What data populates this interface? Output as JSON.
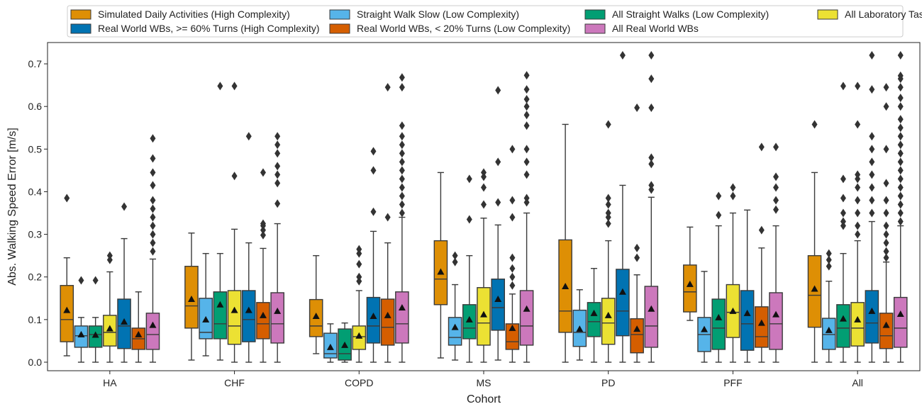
{
  "chart_data": {
    "type": "box",
    "xlabel": "Cohort",
    "ylabel": "Abs. Walking Speed Error [m/s]",
    "ylim": [
      -0.02,
      0.75
    ],
    "yticks": [
      0.0,
      0.1,
      0.2,
      0.3,
      0.4,
      0.5,
      0.6,
      0.7
    ],
    "ytick_labels": [
      "0.0",
      "0.1",
      "0.2",
      "0.3",
      "0.4",
      "0.5",
      "0.6",
      "0.7"
    ],
    "legend_position": "top (above plot), 4 columns",
    "categories": [
      "HA",
      "CHF",
      "COPD",
      "MS",
      "PD",
      "PFF",
      "All"
    ],
    "series": [
      {
        "name": "Simulated Daily Activities (High Complexity)",
        "color": "#DE8F05",
        "boxes": [
          {
            "whislo": 0.015,
            "q1": 0.048,
            "med": 0.1,
            "q3": 0.18,
            "whishi": 0.245,
            "mean": 0.122,
            "fliers": [
              0.385
            ]
          },
          {
            "whislo": 0.005,
            "q1": 0.08,
            "med": 0.132,
            "q3": 0.225,
            "whishi": 0.303,
            "mean": 0.148,
            "fliers": []
          },
          {
            "whislo": 0.02,
            "q1": 0.06,
            "med": 0.085,
            "q3": 0.147,
            "whishi": 0.25,
            "mean": 0.108,
            "fliers": []
          },
          {
            "whislo": 0.01,
            "q1": 0.135,
            "med": 0.195,
            "q3": 0.285,
            "whishi": 0.445,
            "mean": 0.212,
            "fliers": []
          },
          {
            "whislo": 0.0,
            "q1": 0.07,
            "med": 0.12,
            "q3": 0.287,
            "whishi": 0.558,
            "mean": 0.178,
            "fliers": []
          },
          {
            "whislo": 0.098,
            "q1": 0.118,
            "med": 0.165,
            "q3": 0.228,
            "whishi": 0.317,
            "mean": 0.183,
            "fliers": []
          },
          {
            "whislo": 0.0,
            "q1": 0.082,
            "med": 0.157,
            "q3": 0.25,
            "whishi": 0.445,
            "mean": 0.172,
            "fliers": [
              0.558
            ]
          }
        ]
      },
      {
        "name": "Straight Walk Slow (Low Complexity)",
        "color": "#56B4E9",
        "boxes": [
          {
            "whislo": 0.0,
            "q1": 0.035,
            "med": 0.062,
            "q3": 0.085,
            "whishi": 0.105,
            "mean": 0.065,
            "fliers": [
              0.192
            ]
          },
          {
            "whislo": 0.015,
            "q1": 0.055,
            "med": 0.07,
            "q3": 0.15,
            "whishi": 0.255,
            "mean": 0.1,
            "fliers": []
          },
          {
            "whislo": 0.0,
            "q1": 0.01,
            "med": 0.02,
            "q3": 0.068,
            "whishi": 0.09,
            "mean": 0.035,
            "fliers": []
          },
          {
            "whislo": 0.005,
            "q1": 0.04,
            "med": 0.058,
            "q3": 0.105,
            "whishi": 0.182,
            "mean": 0.082,
            "fliers": [
              0.235,
              0.25
            ]
          },
          {
            "whislo": 0.005,
            "q1": 0.037,
            "med": 0.07,
            "q3": 0.122,
            "whishi": 0.17,
            "mean": 0.078,
            "fliers": []
          },
          {
            "whislo": 0.0,
            "q1": 0.025,
            "med": 0.065,
            "q3": 0.105,
            "whishi": 0.213,
            "mean": 0.077,
            "fliers": []
          },
          {
            "whislo": 0.0,
            "q1": 0.03,
            "med": 0.065,
            "q3": 0.103,
            "whishi": 0.19,
            "mean": 0.075,
            "fliers": [
              0.225,
              0.24,
              0.255
            ]
          }
        ]
      },
      {
        "name": "All Straight Walks (Low Complexity)",
        "color": "#029E73",
        "boxes": [
          {
            "whislo": 0.0,
            "q1": 0.035,
            "med": 0.065,
            "q3": 0.085,
            "whishi": 0.105,
            "mean": 0.064,
            "fliers": [
              0.192
            ]
          },
          {
            "whislo": 0.005,
            "q1": 0.055,
            "med": 0.09,
            "q3": 0.165,
            "whishi": 0.255,
            "mean": 0.135,
            "fliers": [
              0.648
            ]
          },
          {
            "whislo": 0.0,
            "q1": 0.005,
            "med": 0.02,
            "q3": 0.078,
            "whishi": 0.092,
            "mean": 0.04,
            "fliers": []
          },
          {
            "whislo": 0.0,
            "q1": 0.055,
            "med": 0.08,
            "q3": 0.135,
            "whishi": 0.25,
            "mean": 0.1,
            "fliers": [
              0.335,
              0.43
            ]
          },
          {
            "whislo": 0.0,
            "q1": 0.06,
            "med": 0.095,
            "q3": 0.14,
            "whishi": 0.22,
            "mean": 0.115,
            "fliers": []
          },
          {
            "whislo": 0.0,
            "q1": 0.03,
            "med": 0.08,
            "q3": 0.148,
            "whishi": 0.32,
            "mean": 0.105,
            "fliers": [
              0.345,
              0.39
            ]
          },
          {
            "whislo": 0.0,
            "q1": 0.035,
            "med": 0.08,
            "q3": 0.135,
            "whishi": 0.255,
            "mean": 0.102,
            "fliers": [
              0.32,
              0.33,
              0.35,
              0.385,
              0.43,
              0.648
            ]
          }
        ]
      },
      {
        "name": "All Laboratory Tasks",
        "color": "#ECE133",
        "boxes": [
          {
            "whislo": 0.0,
            "q1": 0.038,
            "med": 0.07,
            "q3": 0.11,
            "whishi": 0.212,
            "mean": 0.079,
            "fliers": [
              0.24,
              0.25
            ]
          },
          {
            "whislo": 0.0,
            "q1": 0.042,
            "med": 0.085,
            "q3": 0.168,
            "whishi": 0.312,
            "mean": 0.122,
            "fliers": [
              0.437,
              0.648
            ]
          },
          {
            "whislo": 0.0,
            "q1": 0.03,
            "med": 0.06,
            "q3": 0.085,
            "whishi": 0.168,
            "mean": 0.062,
            "fliers": [
              0.19,
              0.2,
              0.23,
              0.255,
              0.265
            ]
          },
          {
            "whislo": 0.0,
            "q1": 0.04,
            "med": 0.092,
            "q3": 0.175,
            "whishi": 0.338,
            "mean": 0.112,
            "fliers": [
              0.37,
              0.41,
              0.435,
              0.445
            ]
          },
          {
            "whislo": 0.0,
            "q1": 0.042,
            "med": 0.092,
            "q3": 0.15,
            "whishi": 0.285,
            "mean": 0.11,
            "fliers": [
              0.325,
              0.34,
              0.35,
              0.37,
              0.385,
              0.558
            ]
          },
          {
            "whislo": 0.0,
            "q1": 0.058,
            "med": 0.117,
            "q3": 0.182,
            "whishi": 0.35,
            "mean": 0.12,
            "fliers": [
              0.39,
              0.41
            ]
          },
          {
            "whislo": 0.0,
            "q1": 0.038,
            "med": 0.08,
            "q3": 0.14,
            "whishi": 0.285,
            "mean": 0.1,
            "fliers": [
              0.3,
              0.32,
              0.35,
              0.38,
              0.41,
              0.43,
              0.44,
              0.558,
              0.648
            ]
          }
        ]
      },
      {
        "name": "Real World WBs, >= 60% Turns (High Complexity)",
        "color": "#0173B2",
        "boxes": [
          {
            "whislo": 0.0,
            "q1": 0.032,
            "med": 0.085,
            "q3": 0.148,
            "whishi": 0.29,
            "mean": 0.095,
            "fliers": [
              0.365
            ]
          },
          {
            "whislo": 0.0,
            "q1": 0.048,
            "med": 0.1,
            "q3": 0.168,
            "whishi": 0.28,
            "mean": 0.122,
            "fliers": [
              0.53
            ]
          },
          {
            "whislo": 0.0,
            "q1": 0.045,
            "med": 0.085,
            "q3": 0.152,
            "whishi": 0.307,
            "mean": 0.108,
            "fliers": [
              0.353,
              0.45,
              0.495
            ]
          },
          {
            "whislo": 0.005,
            "q1": 0.075,
            "med": 0.128,
            "q3": 0.195,
            "whishi": 0.322,
            "mean": 0.148,
            "fliers": [
              0.375,
              0.47,
              0.638
            ]
          },
          {
            "whislo": 0.0,
            "q1": 0.062,
            "med": 0.12,
            "q3": 0.218,
            "whishi": 0.415,
            "mean": 0.165,
            "fliers": [
              0.72
            ]
          },
          {
            "whislo": 0.0,
            "q1": 0.028,
            "med": 0.09,
            "q3": 0.168,
            "whishi": 0.357,
            "mean": 0.115,
            "fliers": []
          },
          {
            "whislo": 0.0,
            "q1": 0.045,
            "med": 0.092,
            "q3": 0.168,
            "whishi": 0.33,
            "mean": 0.12,
            "fliers": [
              0.35,
              0.38,
              0.41,
              0.44,
              0.47,
              0.5,
              0.53,
              0.64,
              0.72
            ]
          }
        ]
      },
      {
        "name": "Real World WBs, < 20% Turns (Low Complexity)",
        "color": "#D55E00",
        "boxes": [
          {
            "whislo": 0.0,
            "q1": 0.03,
            "med": 0.055,
            "q3": 0.08,
            "whishi": 0.165,
            "mean": 0.065,
            "fliers": []
          },
          {
            "whislo": 0.0,
            "q1": 0.055,
            "med": 0.09,
            "q3": 0.14,
            "whishi": 0.267,
            "mean": 0.11,
            "fliers": [
              0.298,
              0.31,
              0.32,
              0.325,
              0.445
            ]
          },
          {
            "whislo": 0.0,
            "q1": 0.04,
            "med": 0.082,
            "q3": 0.148,
            "whishi": 0.28,
            "mean": 0.11,
            "fliers": [
              0.34,
              0.645
            ]
          },
          {
            "whislo": 0.0,
            "q1": 0.03,
            "med": 0.048,
            "q3": 0.09,
            "whishi": 0.16,
            "mean": 0.08,
            "fliers": [
              0.18,
              0.2,
              0.22,
              0.245,
              0.34,
              0.38,
              0.5
            ]
          },
          {
            "whislo": 0.0,
            "q1": 0.022,
            "med": 0.065,
            "q3": 0.102,
            "whishi": 0.205,
            "mean": 0.078,
            "fliers": [
              0.245,
              0.268,
              0.597
            ]
          },
          {
            "whislo": 0.0,
            "q1": 0.035,
            "med": 0.06,
            "q3": 0.13,
            "whishi": 0.268,
            "mean": 0.092,
            "fliers": [
              0.31,
              0.505
            ]
          },
          {
            "whislo": 0.0,
            "q1": 0.032,
            "med": 0.062,
            "q3": 0.115,
            "whishi": 0.235,
            "mean": 0.087,
            "fliers": [
              0.245,
              0.26,
              0.28,
              0.3,
              0.32,
              0.35,
              0.38,
              0.42,
              0.5,
              0.6,
              0.645
            ]
          }
        ]
      },
      {
        "name": "All Real World WBs",
        "color": "#CC78BC",
        "boxes": [
          {
            "whislo": 0.0,
            "q1": 0.03,
            "med": 0.065,
            "q3": 0.115,
            "whishi": 0.242,
            "mean": 0.087,
            "fliers": [
              0.26,
              0.28,
              0.3,
              0.32,
              0.34,
              0.36,
              0.38,
              0.415,
              0.445,
              0.478,
              0.525
            ]
          },
          {
            "whislo": 0.0,
            "q1": 0.045,
            "med": 0.09,
            "q3": 0.163,
            "whishi": 0.325,
            "mean": 0.12,
            "fliers": [
              0.372,
              0.42,
              0.44,
              0.46,
              0.49,
              0.51,
              0.53
            ]
          },
          {
            "whislo": 0.0,
            "q1": 0.045,
            "med": 0.09,
            "q3": 0.165,
            "whishi": 0.34,
            "mean": 0.128,
            "fliers": [
              0.35,
              0.37,
              0.39,
              0.41,
              0.43,
              0.45,
              0.47,
              0.49,
              0.51,
              0.53,
              0.555,
              0.645,
              0.668
            ]
          },
          {
            "whislo": 0.0,
            "q1": 0.04,
            "med": 0.085,
            "q3": 0.168,
            "whishi": 0.35,
            "mean": 0.125,
            "fliers": [
              0.375,
              0.385,
              0.44,
              0.47,
              0.5,
              0.555,
              0.58,
              0.6,
              0.617,
              0.64,
              0.673
            ]
          },
          {
            "whislo": 0.0,
            "q1": 0.035,
            "med": 0.085,
            "q3": 0.178,
            "whishi": 0.387,
            "mean": 0.125,
            "fliers": [
              0.405,
              0.415,
              0.465,
              0.48,
              0.597,
              0.665,
              0.72
            ]
          },
          {
            "whislo": 0.0,
            "q1": 0.03,
            "med": 0.09,
            "q3": 0.163,
            "whishi": 0.32,
            "mean": 0.112,
            "fliers": [
              0.358,
              0.38,
              0.41,
              0.435,
              0.505
            ]
          },
          {
            "whislo": 0.0,
            "q1": 0.035,
            "med": 0.08,
            "q3": 0.152,
            "whishi": 0.32,
            "mean": 0.113,
            "fliers": [
              0.33,
              0.35,
              0.37,
              0.39,
              0.41,
              0.43,
              0.45,
              0.47,
              0.49,
              0.51,
              0.53,
              0.55,
              0.57,
              0.6,
              0.62,
              0.645,
              0.665,
              0.672,
              0.72
            ]
          }
        ]
      }
    ],
    "box_order": [
      "Simulated Daily Activities (High Complexity)",
      "Straight Walk Slow (Low Complexity)",
      "All Straight Walks (Low Complexity)",
      "All Laboratory Tasks",
      "Real World WBs, >= 60% Turns (High Complexity)",
      "Real World WBs, < 20% Turns (Low Complexity)",
      "All Real World WBs"
    ],
    "legend_order": [
      "Simulated Daily Activities (High Complexity)",
      "Real World WBs, >= 60% Turns (High Complexity)",
      "Straight Walk Slow (Low Complexity)",
      "Real World WBs, < 20% Turns (Low Complexity)",
      "All Straight Walks (Low Complexity)",
      "All Real World WBs",
      "All Laboratory Tasks"
    ]
  }
}
